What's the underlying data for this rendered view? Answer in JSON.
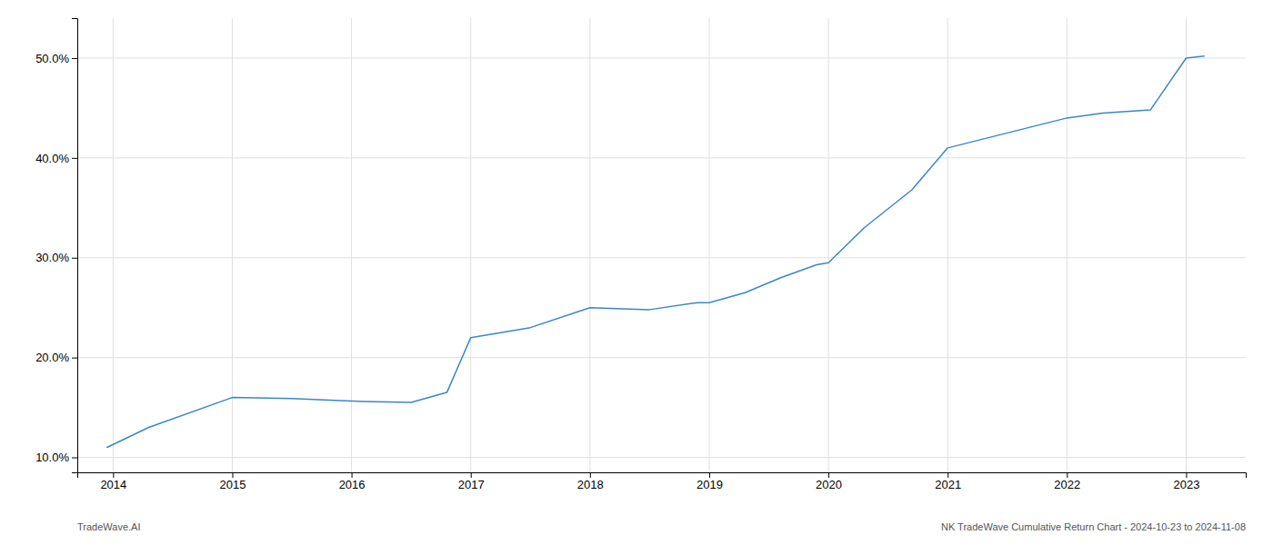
{
  "chart_data": {
    "type": "line",
    "x": [
      2013.95,
      2014.3,
      2015.0,
      2015.5,
      2015.9,
      2016.1,
      2016.5,
      2016.8,
      2017.0,
      2017.5,
      2018.0,
      2018.5,
      2018.9,
      2019.0,
      2019.3,
      2019.6,
      2019.9,
      2020.0,
      2020.3,
      2020.7,
      2021.0,
      2021.5,
      2022.0,
      2022.3,
      2022.7,
      2023.0,
      2023.15
    ],
    "values": [
      11.0,
      13.0,
      16.0,
      15.9,
      15.7,
      15.6,
      15.5,
      16.5,
      22.0,
      23.0,
      25.0,
      24.8,
      25.5,
      25.5,
      26.5,
      28.0,
      29.3,
      29.5,
      33.0,
      36.8,
      41.0,
      42.5,
      44.0,
      44.5,
      44.8,
      50.0,
      50.2
    ],
    "color": "#3a87c8",
    "xlim": [
      2013.7,
      2023.5
    ],
    "xticks": [
      2014,
      2015,
      2016,
      2017,
      2018,
      2019,
      2020,
      2021,
      2022,
      2023
    ],
    "ylim": [
      8.5,
      54.0
    ],
    "yticks": [
      {
        "value": 10.0,
        "label": "10.0%"
      },
      {
        "value": 20.0,
        "label": "20.0%"
      },
      {
        "value": 30.0,
        "label": "30.0%"
      },
      {
        "value": 40.0,
        "label": "40.0%"
      },
      {
        "value": 50.0,
        "label": "50.0%"
      }
    ],
    "grid": true,
    "annotations": [
      "TradeWave.AI",
      "NK TradeWave Cumulative Return Chart - 2024-10-23 to 2024-11-08"
    ]
  }
}
